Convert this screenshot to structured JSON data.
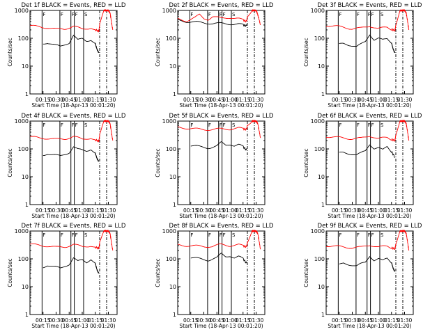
{
  "chart_data": [
    {
      "type": "line",
      "title": "Det 1f BLACK = Events, RED = LLD",
      "xlabel": "Start Time (18-Apr-13 00:01:20)",
      "ylabel": "Counts/sec",
      "y_scale": "log",
      "ylim": [
        1,
        1000
      ],
      "yticks": [
        "1",
        "10",
        "100",
        "1000"
      ],
      "xticks": [
        "00:15",
        "00:30",
        "00:45",
        "01:00",
        "01:15",
        "01:30"
      ],
      "xlim_minutes": [
        0,
        100
      ],
      "flags": [
        "F",
        "F",
        "F",
        "F",
        "S"
      ],
      "grid": false,
      "series": [
        {
          "name": "Events",
          "color": "#000000",
          "x": [
            15,
            20,
            25,
            30,
            35,
            40,
            45,
            50,
            55,
            60,
            65,
            70,
            75,
            77,
            79
          ],
          "y": [
            65,
            70,
            62,
            55,
            50,
            60,
            70,
            130,
            85,
            95,
            80,
            90,
            65,
            40,
            30
          ]
        },
        {
          "name": "LLD",
          "color": "#ff0000",
          "x": [
            0,
            10,
            20,
            30,
            40,
            50,
            60,
            70,
            75,
            79,
            80,
            85,
            88,
            90,
            92,
            95
          ],
          "y": [
            280,
            260,
            240,
            210,
            220,
            270,
            210,
            240,
            200,
            180,
            300,
            1000,
            1000,
            1000,
            800,
            200
          ]
        }
      ]
    },
    {
      "type": "line",
      "title": "Det 2f BLACK = Events, RED = LLD",
      "xlabel": "Start Time (18-Apr-13 00:01:20)",
      "ylabel": "Counts/sec",
      "y_scale": "log",
      "ylim": [
        1,
        1000
      ],
      "yticks": [
        "1",
        "10",
        "100",
        "1000"
      ],
      "xticks": [
        "00:15",
        "00:30",
        "00:45",
        "01:00",
        "01:15",
        "01:30"
      ],
      "xlim_minutes": [
        0,
        100
      ],
      "flags": [
        "F",
        "F",
        "F",
        "F",
        "S"
      ],
      "grid": false,
      "series": [
        {
          "name": "Events",
          "color": "#000000",
          "x": [
            0,
            10,
            20,
            30,
            40,
            50,
            60,
            70,
            75,
            79
          ],
          "y": [
            450,
            400,
            380,
            360,
            340,
            340,
            330,
            320,
            300,
            280
          ]
        },
        {
          "name": "LLD",
          "color": "#ff0000",
          "x": [
            0,
            10,
            20,
            25,
            30,
            35,
            40,
            50,
            60,
            70,
            75,
            79,
            80,
            85,
            88,
            90,
            92,
            95
          ],
          "y": [
            500,
            420,
            550,
            700,
            520,
            480,
            600,
            520,
            560,
            500,
            450,
            400,
            600,
            1000,
            1000,
            1000,
            700,
            300
          ]
        }
      ]
    },
    {
      "type": "line",
      "title": "Det 3f BLACK = Events, RED = LLD",
      "xlabel": "Start Time (18-Apr-13 00:01:20)",
      "ylabel": "Counts/sec",
      "y_scale": "log",
      "ylim": [
        1,
        1000
      ],
      "yticks": [
        "1",
        "10",
        "100",
        "1000"
      ],
      "xticks": [
        "00:15",
        "00:30",
        "00:45",
        "01:00",
        "01:15",
        "01:30"
      ],
      "xlim_minutes": [
        0,
        100
      ],
      "flags": [
        "F",
        "F",
        "F",
        "F",
        "S"
      ],
      "grid": false,
      "series": [
        {
          "name": "Events",
          "color": "#000000",
          "x": [
            15,
            20,
            25,
            30,
            35,
            40,
            45,
            50,
            55,
            60,
            65,
            70,
            75,
            77,
            79
          ],
          "y": [
            60,
            65,
            60,
            55,
            50,
            60,
            75,
            140,
            90,
            100,
            85,
            95,
            70,
            40,
            30
          ]
        },
        {
          "name": "LLD",
          "color": "#ff0000",
          "x": [
            0,
            10,
            20,
            30,
            40,
            50,
            60,
            70,
            75,
            79,
            80,
            85,
            88,
            90,
            92,
            95
          ],
          "y": [
            290,
            270,
            250,
            220,
            230,
            280,
            220,
            250,
            210,
            190,
            300,
            1000,
            1000,
            1000,
            800,
            200
          ]
        }
      ]
    },
    {
      "type": "line",
      "title": "Det 4f BLACK = Events, RED = LLD",
      "xlabel": "Start Time (18-Apr-13 00:01:20)",
      "ylabel": "Counts/sec",
      "y_scale": "log",
      "ylim": [
        1,
        1000
      ],
      "yticks": [
        "1",
        "10",
        "100",
        "1000"
      ],
      "xticks": [
        "00:15",
        "00:30",
        "00:45",
        "01:00",
        "01:15",
        "01:30"
      ],
      "xlim_minutes": [
        0,
        100
      ],
      "flags": [
        "F",
        "F",
        "F",
        "F",
        "S"
      ],
      "grid": false,
      "series": [
        {
          "name": "Events",
          "color": "#000000",
          "x": [
            15,
            20,
            25,
            30,
            35,
            40,
            45,
            50,
            55,
            60,
            65,
            70,
            75,
            77,
            79
          ],
          "y": [
            60,
            68,
            62,
            58,
            55,
            65,
            75,
            120,
            95,
            90,
            85,
            100,
            70,
            45,
            35
          ]
        },
        {
          "name": "LLD",
          "color": "#ff0000",
          "x": [
            0,
            10,
            20,
            30,
            40,
            50,
            60,
            70,
            75,
            79,
            80,
            85,
            88,
            90,
            92,
            95
          ],
          "y": [
            270,
            250,
            240,
            220,
            230,
            280,
            220,
            250,
            210,
            190,
            300,
            1000,
            1000,
            1000,
            800,
            200
          ]
        }
      ]
    },
    {
      "type": "line",
      "title": "Det 5f BLACK = Events, RED = LLD",
      "xlabel": "Start Time (18-Apr-13 00:01:20)",
      "ylabel": "Counts/sec",
      "y_scale": "log",
      "ylim": [
        1,
        1000
      ],
      "yticks": [
        "1",
        "10",
        "100",
        "1000"
      ],
      "xticks": [
        "00:15",
        "00:30",
        "00:45",
        "01:00",
        "01:15",
        "01:30"
      ],
      "xlim_minutes": [
        0,
        100
      ],
      "flags": [
        "F",
        "F",
        "F",
        "F",
        "S"
      ],
      "grid": false,
      "series": [
        {
          "name": "Events",
          "color": "#000000",
          "x": [
            15,
            20,
            25,
            30,
            35,
            40,
            45,
            50,
            55,
            60,
            65,
            70,
            75,
            79
          ],
          "y": [
            130,
            125,
            120,
            115,
            110,
            115,
            125,
            170,
            140,
            150,
            130,
            140,
            120,
            90
          ]
        },
        {
          "name": "LLD",
          "color": "#ff0000",
          "x": [
            0,
            10,
            20,
            30,
            40,
            50,
            60,
            70,
            75,
            79,
            80,
            85,
            88,
            90,
            92,
            95
          ],
          "y": [
            600,
            560,
            520,
            500,
            500,
            520,
            520,
            560,
            520,
            500,
            700,
            1000,
            1000,
            1000,
            800,
            250
          ]
        }
      ]
    },
    {
      "type": "line",
      "title": "Det 6f BLACK = Events, RED = LLD",
      "xlabel": "Start Time (18-Apr-13 00:01:20)",
      "ylabel": "Counts/sec",
      "y_scale": "log",
      "ylim": [
        1,
        1000
      ],
      "yticks": [
        "1",
        "10",
        "100",
        "1000"
      ],
      "xticks": [
        "00:15",
        "00:30",
        "00:45",
        "01:00",
        "01:15",
        "01:30"
      ],
      "xlim_minutes": [
        0,
        100
      ],
      "flags": [
        "F",
        "F",
        "F",
        "F",
        "S"
      ],
      "grid": false,
      "series": [
        {
          "name": "Events",
          "color": "#000000",
          "x": [
            15,
            20,
            25,
            30,
            35,
            40,
            45,
            50,
            55,
            60,
            65,
            70,
            75,
            79
          ],
          "y": [
            70,
            75,
            70,
            65,
            60,
            70,
            85,
            150,
            105,
            110,
            90,
            120,
            80,
            50
          ]
        },
        {
          "name": "LLD",
          "color": "#ff0000",
          "x": [
            0,
            10,
            20,
            30,
            40,
            50,
            60,
            70,
            75,
            79,
            80,
            85,
            88,
            90,
            92,
            95
          ],
          "y": [
            280,
            260,
            250,
            230,
            240,
            300,
            230,
            260,
            220,
            200,
            320,
            1000,
            1000,
            1000,
            800,
            200
          ]
        }
      ]
    },
    {
      "type": "line",
      "title": "Det 7f BLACK = Events, RED = LLD",
      "xlabel": "Start Time (18-Apr-13 00:01:20)",
      "ylabel": "Counts/sec",
      "y_scale": "log",
      "ylim": [
        1,
        1000
      ],
      "yticks": [
        "1",
        "10",
        "100",
        "1000"
      ],
      "xticks": [
        "00:15",
        "00:30",
        "00:45",
        "01:00",
        "01:15",
        "01:30"
      ],
      "xlim_minutes": [
        0,
        100
      ],
      "flags": [
        "F",
        "F",
        "F",
        "F",
        "S"
      ],
      "grid": false,
      "series": [
        {
          "name": "Events",
          "color": "#000000",
          "x": [
            15,
            20,
            25,
            30,
            35,
            40,
            45,
            50,
            55,
            60,
            65,
            70,
            75,
            77,
            79
          ],
          "y": [
            50,
            60,
            55,
            50,
            45,
            55,
            65,
            110,
            80,
            90,
            75,
            100,
            70,
            40,
            30
          ]
        },
        {
          "name": "LLD",
          "color": "#ff0000",
          "x": [
            0,
            10,
            20,
            30,
            40,
            50,
            60,
            70,
            75,
            79,
            80,
            85,
            88,
            90,
            92,
            95
          ],
          "y": [
            330,
            310,
            290,
            260,
            270,
            330,
            270,
            300,
            260,
            240,
            360,
            1000,
            1000,
            1000,
            800,
            200
          ]
        }
      ]
    },
    {
      "type": "line",
      "title": "Det 8f BLACK = Events, RED = LLD",
      "xlabel": "Start Time (18-Apr-13 00:01:20)",
      "ylabel": "Counts/sec",
      "y_scale": "log",
      "ylim": [
        1,
        1000
      ],
      "yticks": [
        "1",
        "10",
        "100",
        "1000"
      ],
      "xticks": [
        "00:15",
        "00:30",
        "00:45",
        "01:00",
        "01:15",
        "01:30"
      ],
      "xlim_minutes": [
        0,
        100
      ],
      "flags": [
        "F",
        "F",
        "F",
        "F",
        "S"
      ],
      "grid": false,
      "series": [
        {
          "name": "Events",
          "color": "#000000",
          "x": [
            15,
            20,
            25,
            30,
            35,
            40,
            45,
            50,
            55,
            60,
            65,
            70,
            75,
            79
          ],
          "y": [
            110,
            105,
            100,
            95,
            90,
            100,
            110,
            150,
            120,
            130,
            110,
            120,
            100,
            70
          ]
        },
        {
          "name": "LLD",
          "color": "#ff0000",
          "x": [
            0,
            10,
            20,
            30,
            40,
            50,
            60,
            70,
            75,
            79,
            80,
            85,
            88,
            90,
            92,
            95
          ],
          "y": [
            320,
            300,
            290,
            280,
            280,
            330,
            300,
            320,
            290,
            270,
            380,
            1000,
            1000,
            1000,
            800,
            220
          ]
        }
      ]
    },
    {
      "type": "line",
      "title": "Det 9f BLACK = Events, RED = LLD",
      "xlabel": "Start Time (18-Apr-13 00:01:20)",
      "ylabel": "Counts/sec",
      "y_scale": "log",
      "ylim": [
        1,
        1000
      ],
      "yticks": [
        "1",
        "10",
        "100",
        "1000"
      ],
      "xticks": [
        "00:15",
        "00:30",
        "00:45",
        "01:00",
        "01:15",
        "01:30"
      ],
      "xlim_minutes": [
        0,
        100
      ],
      "flags": [
        "F",
        "F",
        "F",
        "F",
        "S"
      ],
      "grid": false,
      "series": [
        {
          "name": "Events",
          "color": "#000000",
          "x": [
            15,
            20,
            25,
            30,
            35,
            40,
            45,
            50,
            55,
            60,
            65,
            70,
            75,
            77,
            79
          ],
          "y": [
            60,
            70,
            65,
            60,
            55,
            65,
            75,
            130,
            90,
            100,
            85,
            105,
            75,
            45,
            35
          ]
        },
        {
          "name": "LLD",
          "color": "#ff0000",
          "x": [
            0,
            10,
            20,
            30,
            40,
            50,
            60,
            70,
            75,
            79,
            80,
            85,
            88,
            90,
            92,
            95
          ],
          "y": [
            300,
            280,
            270,
            250,
            260,
            320,
            260,
            290,
            250,
            230,
            340,
            1000,
            1000,
            1000,
            800,
            200
          ]
        }
      ]
    }
  ]
}
